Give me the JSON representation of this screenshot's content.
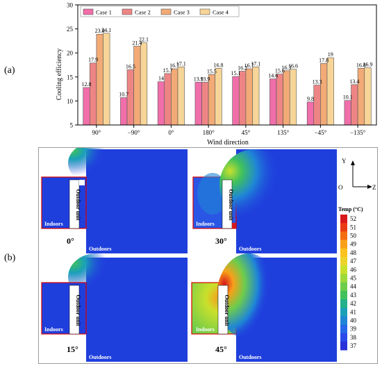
{
  "panel_labels": {
    "a": "(a)",
    "b": "(b)"
  },
  "chart_data": {
    "type": "bar",
    "ylabel": "Cooling efficiency",
    "xlabel": "Wind direction",
    "ylim": [
      5,
      30
    ],
    "yticks": [
      5,
      10,
      15,
      20,
      25,
      30
    ],
    "categories": [
      "90°",
      "−90°",
      "0°",
      "180°",
      "45°",
      "135°",
      "−45°",
      "−135°"
    ],
    "legend_position": "top-left",
    "series": [
      {
        "name": "Case 1",
        "color": "#f06ea9",
        "values": [
          12.8,
          10.7,
          14,
          13.9,
          15.1,
          14.6,
          9.8,
          10.1
        ],
        "labels": [
          "12.8",
          "10.7",
          "14",
          "13.9",
          "15.1",
          "14.6",
          "9.8",
          "10.1"
        ]
      },
      {
        "name": "Case 2",
        "color": "#ee8585",
        "values": [
          17.9,
          16.5,
          15.7,
          13.9,
          16.2,
          15.6,
          13.3,
          13.4
        ],
        "labels": [
          "17.9",
          "16.5",
          "15.7",
          "13.9",
          "16.2",
          "15.6",
          "13.3",
          "13.4"
        ]
      },
      {
        "name": "Case 3",
        "color": "#f2aa76",
        "values": [
          23.9,
          21.4,
          16.7,
          15.5,
          16.7,
          16.3,
          17.8,
          16.8
        ],
        "labels": [
          "23.9",
          "21.4",
          "16.7",
          "15.5",
          "16.7",
          "16.3",
          "17.8",
          "16.8"
        ]
      },
      {
        "name": "Case 4",
        "color": "#f7d598",
        "values": [
          24.1,
          22.1,
          17.1,
          16.8,
          17.1,
          16.6,
          19,
          16.9
        ],
        "labels": [
          "24.1",
          "22.1",
          "17.1",
          "16.8",
          "17.1",
          "16.6",
          "19",
          "16.9"
        ]
      }
    ]
  },
  "cfd": {
    "panels": [
      {
        "angle": "0°",
        "indoors": "Indoors",
        "outdoors": "Outdoors",
        "unit": "Outdoor unit"
      },
      {
        "angle": "30°",
        "indoors": "Indoors",
        "outdoors": "Outdoors",
        "unit": "Outdoor unit"
      },
      {
        "angle": "15°",
        "indoors": "Indoors",
        "outdoors": "Outdoors",
        "unit": "Outdoor unit"
      },
      {
        "angle": "45°",
        "indoors": "Indoors",
        "outdoors": "Outdoors",
        "unit": "Outdoor unit"
      }
    ],
    "axes": {
      "y": "Y",
      "origin": "O",
      "z": "Z"
    },
    "colorbar": {
      "title": "Temp (°C)",
      "ticks": [
        "52",
        "51",
        "50",
        "49",
        "48",
        "47",
        "46",
        "45",
        "44",
        "43",
        "42",
        "41",
        "40",
        "39",
        "38",
        "37"
      ],
      "colors": [
        "#d7191c",
        "#ea3b12",
        "#f46d0e",
        "#f8a01a",
        "#fcc21f",
        "#ecd42a",
        "#c9e02c",
        "#9dd93a",
        "#6ecc4b",
        "#40c15c",
        "#22b08a",
        "#1aa0b8",
        "#1f86d6",
        "#2668e8",
        "#2b4be8",
        "#2a33d8"
      ]
    }
  }
}
